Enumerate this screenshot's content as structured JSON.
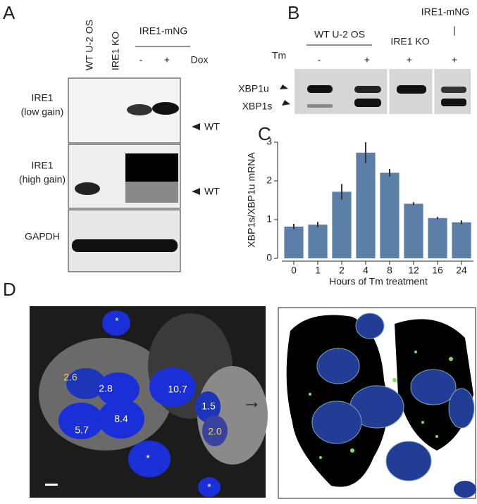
{
  "panelA": {
    "letter": "A",
    "lanes": [
      "WT U-2 OS",
      "IRE1 KO"
    ],
    "construct": "IRE1-mNG",
    "dox_signs": [
      "-",
      "+"
    ],
    "dox": "Dox",
    "rows": [
      [
        "IRE1",
        "(low gain)"
      ],
      [
        "IRE1",
        "(high gain)"
      ],
      [
        "GAPDH"
      ]
    ],
    "arrows": [
      "WT",
      "WT"
    ]
  },
  "panelB": {
    "letter": "B",
    "groups": [
      "WT U-2 OS",
      "IRE1 KO",
      "IRE1-mNG",
      "|"
    ],
    "tm": "Tm",
    "tm_signs": [
      "-",
      "+",
      "+",
      "+"
    ],
    "bands": [
      "XBP1u",
      "XBP1s"
    ]
  },
  "panelD": {
    "letter": "D",
    "cell_values": [
      "2.6",
      "2.8",
      "10.7",
      "1.5",
      "5.7",
      "8.4",
      "2.0"
    ],
    "marker": "*",
    "arrow": "→"
  },
  "chart_data": {
    "type": "bar",
    "letter": "C",
    "categories": [
      "0",
      "1",
      "2",
      "4",
      "8",
      "12",
      "16",
      "24"
    ],
    "values": [
      0.82,
      0.87,
      1.72,
      2.73,
      2.21,
      1.41,
      1.04,
      0.93
    ],
    "errors": [
      0.07,
      0.07,
      0.2,
      0.27,
      0.1,
      0.04,
      0.03,
      0.05
    ],
    "color": "#5b7fa6",
    "xlabel": "Hours of Tm treatment",
    "ylabel": "XBP1s/XBP1u mRNA",
    "ylim": [
      0,
      3
    ],
    "yticks": [
      0,
      1,
      2,
      3
    ]
  }
}
